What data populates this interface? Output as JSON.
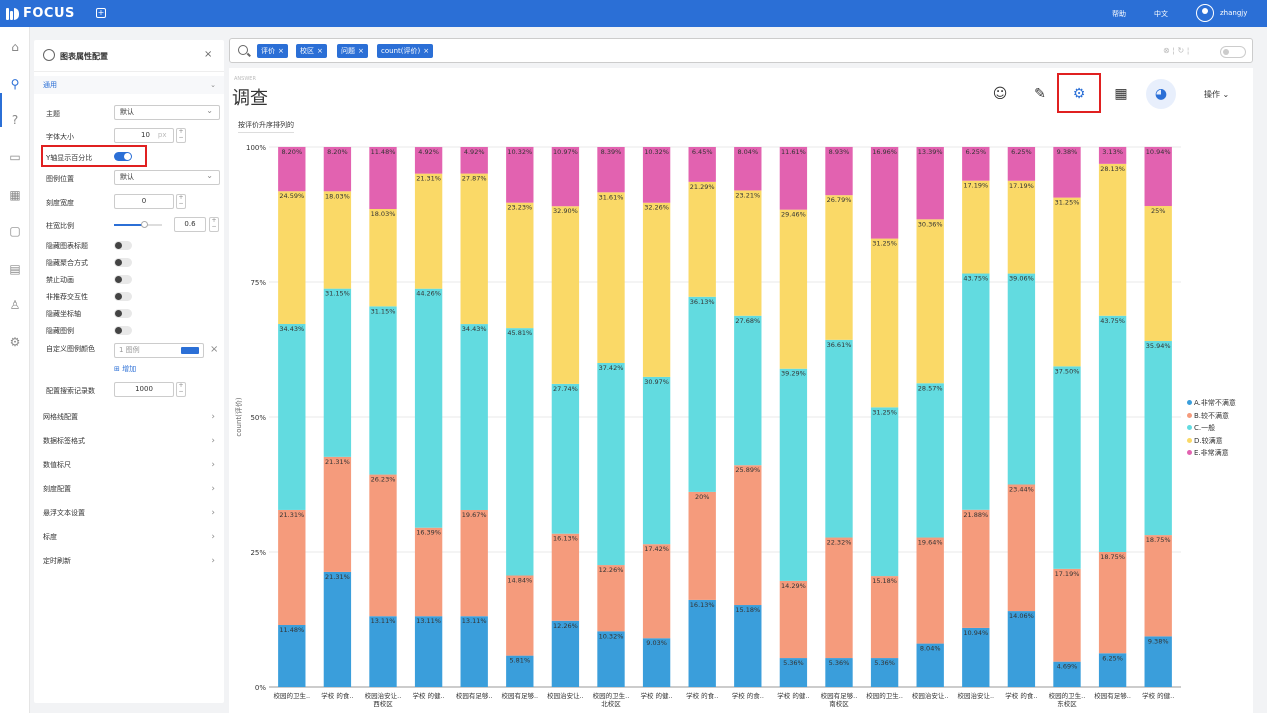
{
  "app": {
    "name": "FOCUS",
    "help": "帮助",
    "lang": "中文",
    "user": "zhangjy"
  },
  "panel": {
    "title": "图表属性配置",
    "section_general": "通用",
    "rows": {
      "theme_label": "主题",
      "theme_value": "默认",
      "fontsize_label": "字体大小",
      "fontsize_value": "10",
      "fontsize_unit": "px",
      "ypercent_label": "Y轴显示百分比",
      "legend_pos_label": "图例位置",
      "legend_pos_value": "默认",
      "tick_width_label": "刻度宽度",
      "tick_width_value": "0",
      "bar_ratio_label": "柱宽比例",
      "bar_ratio_value": "0.6",
      "t1": "隐藏图表标题",
      "t2": "隐藏聚合方式",
      "t3": "禁止动画",
      "t4": "非推荐交互性",
      "t5": "隐藏坐标轴",
      "t6": "隐藏图例",
      "custom_color_label": "自定义图例颜色",
      "custom_color_placeholder": "1 图例",
      "add_label": "增加",
      "search_count_label": "配置搜索记录数",
      "search_count_value": "1000"
    },
    "toggles": {
      "ypercent": true,
      "t1": false,
      "t2": false,
      "t3": false,
      "t4": false,
      "t5": false,
      "t6": false
    },
    "collapsed": [
      "网格线配置",
      "数据标签格式",
      "数值标尺",
      "刻度配置",
      "悬浮文本设置",
      "标度",
      "定时刷新"
    ]
  },
  "search": {
    "chips": [
      "评价",
      "校区",
      "问题",
      "count(评价)"
    ]
  },
  "main": {
    "answer_tag": "ANSWER",
    "title": "调查",
    "sort_label": "按评价升序排列的",
    "ops": "操作"
  },
  "colors": {
    "A": "#3a9edb",
    "B": "#f59b7c",
    "C": "#62dbe0",
    "D": "#fad967",
    "E": "#e262b0",
    "accent": "#2b6fd6"
  },
  "chart_data": {
    "type": "bar",
    "stacked": true,
    "ylabel": "count(评价)",
    "yticks": [
      "0%",
      "25%",
      "50%",
      "75%",
      "100%"
    ],
    "ylim": [
      0,
      100
    ],
    "categories": [
      "校园的卫生..",
      "学校 的食..",
      "校园治安让..",
      "学校 的健..",
      "校园有足够..",
      "校园有足够..",
      "校园治安让..",
      "校园的卫生..",
      "学校 的健..",
      "学校 的食..",
      "学校 的食..",
      "学校 的健..",
      "校园有足够..",
      "校园的卫生..",
      "校园治安让..",
      "校园治安让..",
      "学校 的食..",
      "校园的卫生..",
      "校园有足够..",
      "学校 的健.."
    ],
    "groups": [
      {
        "name": "西校区",
        "from": 0,
        "to": 4
      },
      {
        "name": "北校区",
        "from": 5,
        "to": 9
      },
      {
        "name": "南校区",
        "from": 10,
        "to": 14
      },
      {
        "name": "东校区",
        "from": 15,
        "to": 19
      }
    ],
    "series": [
      {
        "name": "A.非常不满意",
        "key": "A",
        "values": [
          11.48,
          21.31,
          13.11,
          13.11,
          13.11,
          5.81,
          12.26,
          10.32,
          9.03,
          16.13,
          15.18,
          5.36,
          5.36,
          5.36,
          8.04,
          10.94,
          14.06,
          4.69,
          6.25,
          9.38
        ]
      },
      {
        "name": "B.较不满意",
        "key": "B",
        "values": [
          21.31,
          21.31,
          26.23,
          16.39,
          19.67,
          14.84,
          16.13,
          12.26,
          17.42,
          20,
          25.89,
          14.29,
          22.32,
          15.18,
          19.64,
          21.88,
          23.44,
          17.19,
          18.75,
          18.75
        ]
      },
      {
        "name": "C.一般",
        "key": "C",
        "values": [
          34.43,
          31.15,
          31.15,
          44.26,
          34.43,
          45.81,
          27.74,
          37.42,
          30.97,
          36.13,
          27.68,
          39.29,
          36.61,
          31.25,
          28.57,
          43.75,
          39.06,
          37.5,
          43.75,
          35.94
        ]
      },
      {
        "name": "D.较满意",
        "key": "D",
        "values": [
          24.59,
          18.03,
          18.03,
          21.31,
          27.87,
          23.23,
          32.9,
          31.61,
          32.26,
          21.29,
          23.21,
          29.46,
          26.79,
          31.25,
          30.36,
          17.19,
          17.19,
          31.25,
          28.13,
          25
        ]
      },
      {
        "name": "E.非常满意",
        "key": "E",
        "values": [
          8.2,
          8.2,
          11.48,
          4.92,
          4.92,
          10.32,
          10.97,
          8.39,
          10.32,
          6.45,
          8.04,
          11.61,
          8.93,
          16.96,
          13.39,
          6.25,
          6.25,
          9.38,
          3.13,
          10.94
        ]
      }
    ],
    "labels": {
      "A": [
        "11.48%",
        "21.31%",
        "13.11%",
        "13.11%",
        "13.11%",
        "5.81%",
        "12.26%",
        "10.32%",
        "9.03%",
        "16.13%",
        "15.18%",
        "5.36%",
        "5.36%",
        "5.36%",
        "8.04%",
        "10.94%",
        "14.06%",
        "4.69%",
        "6.25%",
        "9.38%"
      ],
      "B": [
        "21.31%",
        "21.31%",
        "26.23%",
        "16.39%",
        "19.67%",
        "14.84%",
        "16.13%",
        "12.26%",
        "17.42%",
        "20%",
        "25.89%",
        "14.29%",
        "22.32%",
        "15.18%",
        "19.64%",
        "21.88%",
        "23.44%",
        "17.19%",
        "18.75%",
        "18.75%"
      ],
      "C": [
        "34.43%",
        "31.15%",
        "31.15%",
        "44.26%",
        "34.43%",
        "45.81%",
        "27.74%",
        "37.42%",
        "30.97%",
        "36.13%",
        "27.68%",
        "39.29%",
        "36.61%",
        "31.25%",
        "28.57%",
        "43.75%",
        "39.06%",
        "37.50%",
        "43.75%",
        "35.94%"
      ],
      "D": [
        "24.59%",
        "18.03%",
        "18.03%",
        "21.31%",
        "27.87%",
        "23.23%",
        "32.90%",
        "31.61%",
        "32.26%",
        "21.29%",
        "23.21%",
        "29.46%",
        "26.79%",
        "31.25%",
        "30.36%",
        "17.19%",
        "17.19%",
        "31.25%",
        "28.13%",
        "25%"
      ],
      "E": [
        "8.20%",
        "8.20%",
        "11.48%",
        "4.92%",
        "4.92%",
        "10.32%",
        "10.97%",
        "8.39%",
        "10.32%",
        "6.45%",
        "8.04%",
        "11.61%",
        "8.93%",
        "16.96%",
        "13.39%",
        "6.25%",
        "6.25%",
        "9.38%",
        "3.13%",
        "10.94%"
      ]
    },
    "legend_position": "right"
  }
}
